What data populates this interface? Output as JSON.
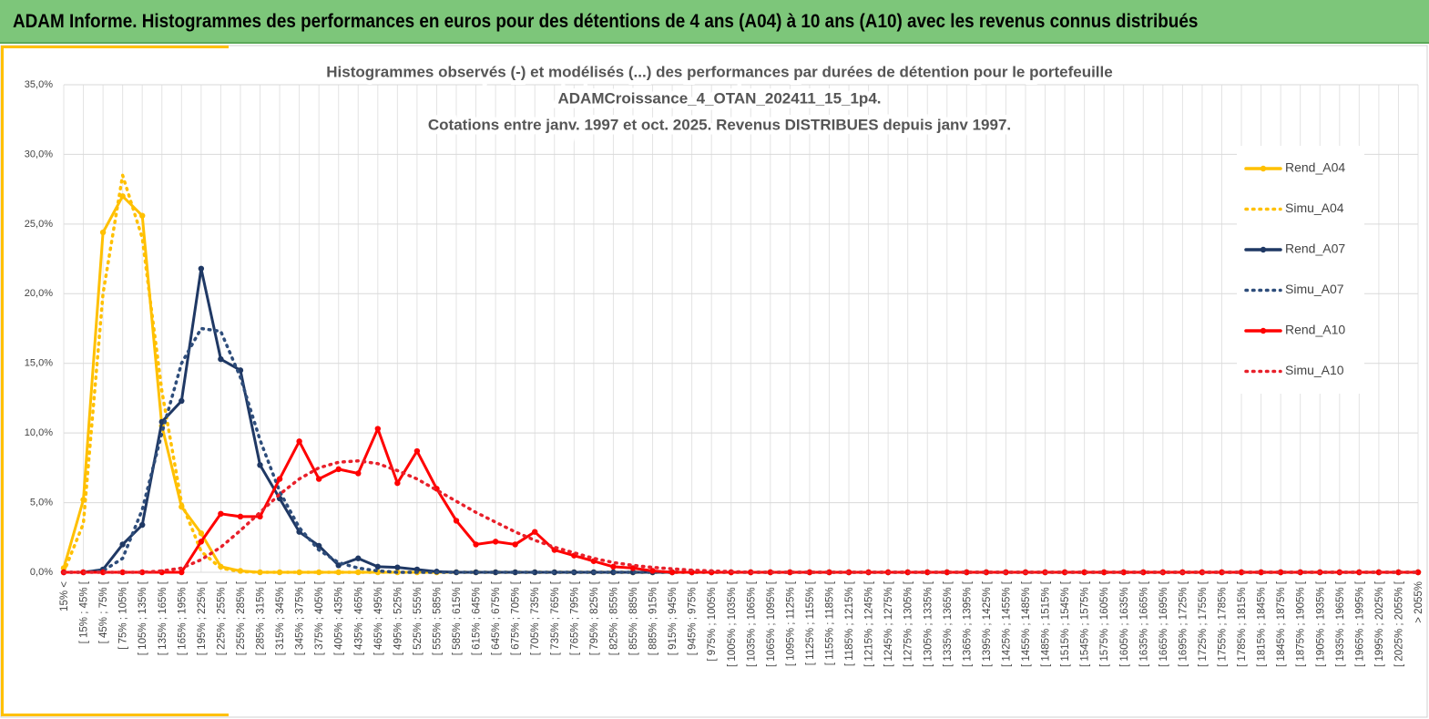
{
  "header": {
    "title": "ADAM Informe. Histogrammes des performances en euros pour des détentions de 4 ans (A04) à 10 ans (A10) avec les revenus connus distribués"
  },
  "chart_data": {
    "type": "line",
    "title": [
      "Histogrammes observés (-) et modélisés (...) des performances  par durées de détention pour le portefeuille",
      "ADAMCroissance_4_OTAN_202411_15_1p4.",
      "Cotations entre janv. 1997 et oct. 2025. Revenus DISTRIBUES depuis janv 1997."
    ],
    "categories": [
      "15% <",
      "[ 15% ; 45% [",
      "[ 45% ; 75% [",
      "[ 75% ; 105% [",
      "[ 105% ; 135% [",
      "[ 135% ; 165% [",
      "[ 165% ; 195% [",
      "[ 195% ; 225% [",
      "[ 225% ; 255% [",
      "[ 255% ; 285% [",
      "[ 285% ; 315% [",
      "[ 315% ; 345% [",
      "[ 345% ; 375% [",
      "[ 375% ; 405% [",
      "[ 405% ; 435% [",
      "[ 435% ; 465% [",
      "[ 465% ; 495% [",
      "[ 495% ; 525% [",
      "[ 525% ; 555% [",
      "[ 555% ; 585% [",
      "[ 585% ; 615% [",
      "[ 615% ; 645% [",
      "[ 645% ; 675% [",
      "[ 675% ; 705% [",
      "[ 705% ; 735% [",
      "[ 735% ; 765% [",
      "[ 765% ; 795% [",
      "[ 795% ; 825% [",
      "[ 825% ; 855% [",
      "[ 855% ; 885% [",
      "[ 885% ; 915% [",
      "[ 915% ; 945% [",
      "[ 945% ; 975% [",
      "[ 975% ; 1005% [",
      "[ 1005% ; 1035% [",
      "[ 1035% ; 1065% [",
      "[ 1065% ; 1095% [",
      "[ 1095% ; 1125% [",
      "[ 1125% ; 1155% [",
      "[ 1155% ; 1185% [",
      "[ 1185% ; 1215% [",
      "[ 1215% ; 1245% [",
      "[ 1245% ; 1275% [",
      "[ 1275% ; 1305% [",
      "[ 1305% ; 1335% [",
      "[ 1335% ; 1365% [",
      "[ 1365% ; 1395% [",
      "[ 1395% ; 1425% [",
      "[ 1425% ; 1455% [",
      "[ 1455% ; 1485% [",
      "[ 1485% ; 1515% [",
      "[ 1515% ; 1545% [",
      "[ 1545% ; 1575% [",
      "[ 1575% ; 1605% [",
      "[ 1605% ; 1635% [",
      "[ 1635% ; 1665% [",
      "[ 1665% ; 1695% [",
      "[ 1695% ; 1725% [",
      "[ 1725% ; 1755% [",
      "[ 1755% ; 1785% [",
      "[ 1785% ; 1815% [",
      "[ 1815% ; 1845% [",
      "[ 1845% ; 1875% [",
      "[ 1875% ; 1905% [",
      "[ 1905% ; 1935% [",
      "[ 1935% ; 1965% [",
      "[ 1965% ; 1995% [",
      "[ 1995% ; 2025% [",
      "[ 2025% ; 2055% [",
      "> 2055%"
    ],
    "series": [
      {
        "name": "Rend_A04",
        "color": "#ffc000",
        "dashed": false,
        "values": [
          0.3,
          5.2,
          24.4,
          27.0,
          25.6,
          10.5,
          4.7,
          2.8,
          0.4,
          0.1,
          0,
          0,
          0,
          0,
          0,
          0,
          0,
          0,
          0,
          0,
          0,
          0,
          0,
          0,
          0,
          0,
          0,
          0,
          0,
          0,
          0,
          0,
          0,
          0,
          0,
          0,
          0,
          0,
          0,
          0,
          0,
          0,
          0,
          0,
          0,
          0,
          0,
          0,
          0,
          0,
          0,
          0,
          0,
          0,
          0,
          0,
          0,
          0,
          0,
          0,
          0,
          0,
          0,
          0,
          0,
          0,
          0,
          0,
          0,
          0
        ]
      },
      {
        "name": "Simu_A04",
        "color": "#ffc000",
        "dashed": true,
        "values": [
          0,
          3.5,
          20,
          28.5,
          24,
          13,
          5,
          1.5,
          0.3,
          0.05,
          0,
          0,
          0,
          0,
          0,
          0,
          0,
          0,
          0,
          0,
          0,
          0,
          0,
          0,
          0,
          0,
          0,
          0,
          0,
          0,
          0,
          0,
          0,
          0,
          0,
          0,
          0,
          0,
          0,
          0,
          0,
          0,
          0,
          0,
          0,
          0,
          0,
          0,
          0,
          0,
          0,
          0,
          0,
          0,
          0,
          0,
          0,
          0,
          0,
          0,
          0,
          0,
          0,
          0,
          0,
          0,
          0,
          0,
          0,
          0
        ]
      },
      {
        "name": "Rend_A07",
        "color": "#1f3864",
        "dashed": false,
        "values": [
          0,
          0,
          0.2,
          2.0,
          3.4,
          10.8,
          12.3,
          21.8,
          15.3,
          14.5,
          7.7,
          5.3,
          2.9,
          1.9,
          0.5,
          1.0,
          0.4,
          0.35,
          0.2,
          0.05,
          0,
          0,
          0,
          0,
          0,
          0,
          0,
          0,
          0,
          0,
          0,
          0,
          0,
          0,
          0,
          0,
          0,
          0,
          0,
          0,
          0,
          0,
          0,
          0,
          0,
          0,
          0,
          0,
          0,
          0,
          0,
          0,
          0,
          0,
          0,
          0,
          0,
          0,
          0,
          0,
          0,
          0,
          0,
          0,
          0,
          0,
          0,
          0,
          0,
          0
        ]
      },
      {
        "name": "Simu_A07",
        "color": "#2e4d7b",
        "dashed": true,
        "values": [
          0,
          0,
          0.1,
          1.0,
          4.5,
          10,
          15,
          17.5,
          17.3,
          14,
          9.5,
          5.8,
          3.2,
          1.6,
          0.7,
          0.3,
          0.1,
          0,
          0,
          0,
          0,
          0,
          0,
          0,
          0,
          0,
          0,
          0,
          0,
          0,
          0,
          0,
          0,
          0,
          0,
          0,
          0,
          0,
          0,
          0,
          0,
          0,
          0,
          0,
          0,
          0,
          0,
          0,
          0,
          0,
          0,
          0,
          0,
          0,
          0,
          0,
          0,
          0,
          0,
          0,
          0,
          0,
          0,
          0,
          0,
          0,
          0,
          0,
          0,
          0
        ]
      },
      {
        "name": "Rend_A10",
        "color": "#ff0000",
        "dashed": false,
        "values": [
          0,
          0,
          0,
          0,
          0,
          0,
          0,
          2.2,
          4.2,
          4.0,
          4.0,
          6.7,
          9.4,
          6.7,
          7.4,
          7.1,
          10.3,
          6.4,
          8.7,
          6.0,
          3.7,
          2.0,
          2.2,
          2.0,
          2.9,
          1.6,
          1.2,
          0.8,
          0.4,
          0.3,
          0.1,
          0,
          0,
          0,
          0,
          0,
          0,
          0,
          0,
          0,
          0,
          0,
          0,
          0,
          0,
          0,
          0,
          0,
          0,
          0,
          0,
          0,
          0,
          0,
          0,
          0,
          0,
          0,
          0,
          0,
          0,
          0,
          0,
          0,
          0,
          0,
          0,
          0,
          0,
          0
        ]
      },
      {
        "name": "Simu_A10",
        "color": "#e8202a",
        "dashed": true,
        "values": [
          0,
          0,
          0,
          0,
          0,
          0.1,
          0.3,
          0.9,
          1.8,
          3.0,
          4.3,
          5.6,
          6.7,
          7.5,
          7.9,
          8.0,
          7.8,
          7.3,
          6.7,
          5.9,
          5.1,
          4.3,
          3.6,
          2.9,
          2.3,
          1.8,
          1.4,
          1.0,
          0.7,
          0.5,
          0.35,
          0.25,
          0.15,
          0.1,
          0.05,
          0,
          0,
          0,
          0,
          0,
          0,
          0,
          0,
          0,
          0,
          0,
          0,
          0,
          0,
          0,
          0,
          0,
          0,
          0,
          0,
          0,
          0,
          0,
          0,
          0,
          0,
          0,
          0,
          0,
          0,
          0,
          0,
          0,
          0,
          0
        ]
      }
    ],
    "ylim": [
      0,
      35
    ],
    "yticks": [
      {
        "value": 0,
        "label": "0,0%"
      },
      {
        "value": 5,
        "label": "5,0%"
      },
      {
        "value": 10,
        "label": "10,0%"
      },
      {
        "value": 15,
        "label": "15,0%"
      },
      {
        "value": 20,
        "label": "20,0%"
      },
      {
        "value": 25,
        "label": "25,0%"
      },
      {
        "value": 30,
        "label": "30,0%"
      },
      {
        "value": 35,
        "label": "35,0%"
      }
    ],
    "grid": true,
    "legend": "right"
  }
}
